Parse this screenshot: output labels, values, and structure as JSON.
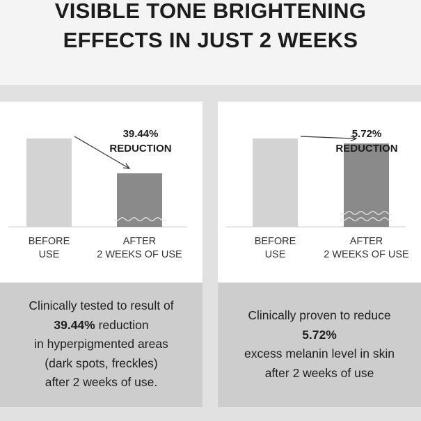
{
  "headline": {
    "line1": "VISIBLE TONE BRIGHTENING",
    "line2": "EFFECTS IN JUST 2 WEEKS"
  },
  "colors": {
    "before_bar": "#d3d3d3",
    "after_bar": "#8a8a8a",
    "band": "#e1e1e1",
    "caption_bg": "#cdcdcd"
  },
  "chart_data": [
    {
      "type": "bar",
      "categories": [
        "BEFORE USE",
        "AFTER 2 WEEKS OF USE"
      ],
      "category_lines": [
        [
          "BEFORE",
          "USE"
        ],
        [
          "AFTER",
          "2 WEEKS OF USE"
        ]
      ],
      "values": [
        100,
        60.56
      ],
      "annotation": [
        "39.44%",
        "REDUCTION"
      ],
      "ylim": [
        0,
        100
      ]
    },
    {
      "type": "bar",
      "categories": [
        "BEFORE USE",
        "AFTER 2 WEEKS OF USE"
      ],
      "category_lines": [
        [
          "BEFORE",
          "USE"
        ],
        [
          "AFTER",
          "2 WEEKS OF USE"
        ]
      ],
      "values": [
        100,
        94.28
      ],
      "annotation": [
        "5.72%",
        "REDUCTION"
      ],
      "ylim": [
        0,
        100
      ]
    }
  ],
  "captions": {
    "left": [
      "Clinically tested to result of",
      "39.44%",
      "reduction",
      "in hyperpigmented areas",
      "(dark spots, freckles)",
      "after 2 weeks of use."
    ],
    "right": [
      "Clinically proven to reduce",
      "5.72%",
      "excess melanin level in skin",
      "after 2 weeks of use"
    ]
  }
}
